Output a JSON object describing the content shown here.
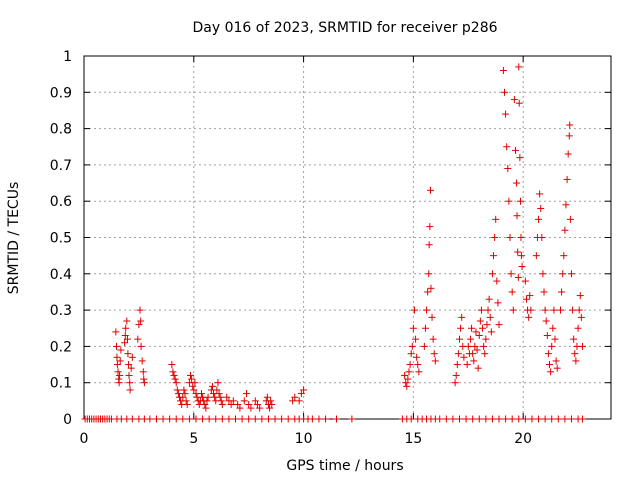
{
  "chart_data": {
    "type": "scatter",
    "title": "Day 016 of 2023, SRMTID for receiver p286",
    "xlabel": "GPS time / hours",
    "ylabel": "SRMTID / TECUs",
    "xlim": [
      0,
      24
    ],
    "ylim": [
      0,
      1
    ],
    "xticks": [
      0,
      5,
      10,
      15,
      20
    ],
    "xtick_labels": [
      "0",
      "5",
      "10",
      "15",
      "20"
    ],
    "yticks": [
      0,
      0.1,
      0.2,
      0.3,
      0.4,
      0.5,
      0.6,
      0.7,
      0.8,
      0.9,
      1
    ],
    "ytick_labels": [
      "0",
      "0.1",
      "0.2",
      "0.3",
      "0.4",
      "0.5",
      "0.6",
      "0.7",
      "0.8",
      "0.9",
      "1"
    ],
    "grid": true,
    "marker": "+",
    "color": "#e00000",
    "series": [
      {
        "name": "SRMTID",
        "points": [
          [
            0.05,
            0
          ],
          [
            0.15,
            0
          ],
          [
            0.25,
            0
          ],
          [
            0.35,
            0
          ],
          [
            0.45,
            0
          ],
          [
            0.55,
            0
          ],
          [
            0.65,
            0
          ],
          [
            0.75,
            0
          ],
          [
            0.85,
            0
          ],
          [
            0.95,
            0
          ],
          [
            1.05,
            0
          ],
          [
            1.15,
            0
          ],
          [
            1.25,
            0
          ],
          [
            1.5,
            0
          ],
          [
            1.7,
            0
          ],
          [
            1.95,
            0
          ],
          [
            2.2,
            0
          ],
          [
            2.5,
            0
          ],
          [
            2.75,
            0
          ],
          [
            3.0,
            0
          ],
          [
            3.3,
            0
          ],
          [
            3.6,
            0
          ],
          [
            3.9,
            0
          ],
          [
            4.2,
            0
          ],
          [
            4.5,
            0
          ],
          [
            4.8,
            0
          ],
          [
            5.1,
            0
          ],
          [
            5.4,
            0
          ],
          [
            5.7,
            0
          ],
          [
            6.0,
            0
          ],
          [
            6.3,
            0
          ],
          [
            6.6,
            0
          ],
          [
            6.9,
            0
          ],
          [
            7.2,
            0
          ],
          [
            7.5,
            0
          ],
          [
            7.8,
            0
          ],
          [
            8.1,
            0
          ],
          [
            8.4,
            0
          ],
          [
            8.7,
            0
          ],
          [
            9.0,
            0
          ],
          [
            9.3,
            0
          ],
          [
            9.6,
            0
          ],
          [
            9.8,
            0
          ],
          [
            10.0,
            0
          ],
          [
            10.2,
            0
          ],
          [
            10.4,
            0
          ],
          [
            10.7,
            0
          ],
          [
            11.0,
            0
          ],
          [
            11.5,
            0
          ],
          [
            12.2,
            0
          ],
          [
            14.5,
            0
          ],
          [
            14.7,
            0
          ],
          [
            14.9,
            0
          ],
          [
            15.2,
            0
          ],
          [
            15.4,
            0
          ],
          [
            15.6,
            0
          ],
          [
            15.8,
            0
          ],
          [
            16.0,
            0
          ],
          [
            16.2,
            0
          ],
          [
            16.5,
            0
          ],
          [
            16.8,
            0
          ],
          [
            17.1,
            0
          ],
          [
            17.4,
            0
          ],
          [
            17.7,
            0
          ],
          [
            18.0,
            0
          ],
          [
            18.3,
            0
          ],
          [
            18.6,
            0
          ],
          [
            18.9,
            0
          ],
          [
            19.2,
            0
          ],
          [
            19.5,
            0
          ],
          [
            19.8,
            0
          ],
          [
            20.1,
            0
          ],
          [
            20.4,
            0
          ],
          [
            20.7,
            0
          ],
          [
            21.0,
            0
          ],
          [
            21.3,
            0
          ],
          [
            21.6,
            0
          ],
          [
            21.9,
            0
          ],
          [
            22.2,
            0
          ],
          [
            22.5,
            0
          ],
          [
            22.7,
            0
          ],
          [
            1.45,
            0.24
          ],
          [
            1.48,
            0.2
          ],
          [
            1.5,
            0.17
          ],
          [
            1.52,
            0.15
          ],
          [
            1.55,
            0.13
          ],
          [
            1.58,
            0.11
          ],
          [
            1.6,
            0.1
          ],
          [
            1.62,
            0.12
          ],
          [
            1.65,
            0.16
          ],
          [
            1.68,
            0.19
          ],
          [
            1.85,
            0.21
          ],
          [
            1.88,
            0.23
          ],
          [
            1.9,
            0.25
          ],
          [
            1.95,
            0.27
          ],
          [
            1.98,
            0.22
          ],
          [
            2.0,
            0.18
          ],
          [
            2.03,
            0.15
          ],
          [
            2.05,
            0.12
          ],
          [
            2.08,
            0.1
          ],
          [
            2.1,
            0.08
          ],
          [
            2.15,
            0.14
          ],
          [
            2.2,
            0.17
          ],
          [
            2.45,
            0.22
          ],
          [
            2.5,
            0.26
          ],
          [
            2.55,
            0.3
          ],
          [
            2.58,
            0.27
          ],
          [
            2.6,
            0.2
          ],
          [
            2.65,
            0.16
          ],
          [
            2.7,
            0.13
          ],
          [
            2.72,
            0.11
          ],
          [
            2.75,
            0.1
          ],
          [
            4.0,
            0.15
          ],
          [
            4.05,
            0.13
          ],
          [
            4.1,
            0.12
          ],
          [
            4.15,
            0.11
          ],
          [
            4.2,
            0.1
          ],
          [
            4.25,
            0.08
          ],
          [
            4.3,
            0.07
          ],
          [
            4.35,
            0.06
          ],
          [
            4.4,
            0.05
          ],
          [
            4.45,
            0.04
          ],
          [
            4.5,
            0.06
          ],
          [
            4.55,
            0.08
          ],
          [
            4.6,
            0.07
          ],
          [
            4.65,
            0.05
          ],
          [
            4.7,
            0.04
          ],
          [
            4.8,
            0.1
          ],
          [
            4.85,
            0.12
          ],
          [
            4.9,
            0.11
          ],
          [
            4.95,
            0.09
          ],
          [
            5.0,
            0.08
          ],
          [
            5.05,
            0.1
          ],
          [
            5.1,
            0.07
          ],
          [
            5.15,
            0.06
          ],
          [
            5.2,
            0.05
          ],
          [
            5.25,
            0.04
          ],
          [
            5.3,
            0.05
          ],
          [
            5.35,
            0.07
          ],
          [
            5.4,
            0.06
          ],
          [
            5.45,
            0.05
          ],
          [
            5.5,
            0.04
          ],
          [
            5.55,
            0.03
          ],
          [
            5.6,
            0.05
          ],
          [
            5.65,
            0.06
          ],
          [
            5.8,
            0.08
          ],
          [
            5.85,
            0.09
          ],
          [
            5.9,
            0.07
          ],
          [
            5.95,
            0.06
          ],
          [
            6.0,
            0.05
          ],
          [
            6.05,
            0.08
          ],
          [
            6.1,
            0.1
          ],
          [
            6.15,
            0.07
          ],
          [
            6.2,
            0.06
          ],
          [
            6.25,
            0.05
          ],
          [
            6.3,
            0.04
          ],
          [
            6.5,
            0.06
          ],
          [
            6.6,
            0.05
          ],
          [
            6.7,
            0.04
          ],
          [
            6.8,
            0.05
          ],
          [
            7.0,
            0.04
          ],
          [
            7.1,
            0.03
          ],
          [
            7.3,
            0.05
          ],
          [
            7.4,
            0.07
          ],
          [
            7.5,
            0.04
          ],
          [
            7.6,
            0.03
          ],
          [
            7.8,
            0.05
          ],
          [
            7.9,
            0.04
          ],
          [
            8.0,
            0.03
          ],
          [
            8.3,
            0.05
          ],
          [
            8.35,
            0.06
          ],
          [
            8.4,
            0.04
          ],
          [
            8.45,
            0.03
          ],
          [
            8.5,
            0.05
          ],
          [
            8.55,
            0.04
          ],
          [
            9.5,
            0.05
          ],
          [
            9.6,
            0.06
          ],
          [
            9.8,
            0.05
          ],
          [
            9.9,
            0.07
          ],
          [
            10.0,
            0.08
          ],
          [
            14.6,
            0.12
          ],
          [
            14.65,
            0.1
          ],
          [
            14.7,
            0.09
          ],
          [
            14.75,
            0.11
          ],
          [
            14.8,
            0.13
          ],
          [
            14.85,
            0.15
          ],
          [
            14.9,
            0.18
          ],
          [
            14.95,
            0.2
          ],
          [
            15.0,
            0.25
          ],
          [
            15.05,
            0.3
          ],
          [
            15.1,
            0.22
          ],
          [
            15.15,
            0.17
          ],
          [
            15.2,
            0.15
          ],
          [
            15.25,
            0.13
          ],
          [
            15.5,
            0.2
          ],
          [
            15.55,
            0.25
          ],
          [
            15.6,
            0.3
          ],
          [
            15.65,
            0.35
          ],
          [
            15.7,
            0.4
          ],
          [
            15.72,
            0.48
          ],
          [
            15.75,
            0.53
          ],
          [
            15.78,
            0.63
          ],
          [
            15.8,
            0.36
          ],
          [
            15.85,
            0.28
          ],
          [
            15.9,
            0.22
          ],
          [
            15.95,
            0.18
          ],
          [
            16.0,
            0.16
          ],
          [
            16.9,
            0.1
          ],
          [
            16.95,
            0.12
          ],
          [
            17.0,
            0.15
          ],
          [
            17.05,
            0.18
          ],
          [
            17.1,
            0.22
          ],
          [
            17.15,
            0.25
          ],
          [
            17.2,
            0.28
          ],
          [
            17.25,
            0.2
          ],
          [
            17.3,
            0.17
          ],
          [
            17.45,
            0.15
          ],
          [
            17.5,
            0.2
          ],
          [
            17.55,
            0.18
          ],
          [
            17.6,
            0.22
          ],
          [
            17.65,
            0.25
          ],
          [
            17.7,
            0.18
          ],
          [
            17.75,
            0.16
          ],
          [
            17.8,
            0.2
          ],
          [
            17.85,
            0.24
          ],
          [
            17.9,
            0.19
          ],
          [
            17.95,
            0.14
          ],
          [
            18.0,
            0.23
          ],
          [
            18.05,
            0.27
          ],
          [
            18.1,
            0.3
          ],
          [
            18.15,
            0.25
          ],
          [
            18.2,
            0.2
          ],
          [
            18.25,
            0.18
          ],
          [
            18.3,
            0.22
          ],
          [
            18.35,
            0.26
          ],
          [
            18.4,
            0.3
          ],
          [
            18.45,
            0.33
          ],
          [
            18.5,
            0.28
          ],
          [
            18.55,
            0.24
          ],
          [
            18.6,
            0.4
          ],
          [
            18.65,
            0.45
          ],
          [
            18.7,
            0.5
          ],
          [
            18.75,
            0.55
          ],
          [
            18.8,
            0.38
          ],
          [
            18.85,
            0.32
          ],
          [
            18.9,
            0.26
          ],
          [
            19.1,
            0.96
          ],
          [
            19.15,
            0.9
          ],
          [
            19.2,
            0.84
          ],
          [
            19.25,
            0.75
          ],
          [
            19.3,
            0.69
          ],
          [
            19.35,
            0.6
          ],
          [
            19.4,
            0.5
          ],
          [
            19.45,
            0.4
          ],
          [
            19.5,
            0.35
          ],
          [
            19.55,
            0.3
          ],
          [
            19.6,
            0.88
          ],
          [
            19.65,
            0.74
          ],
          [
            19.7,
            0.65
          ],
          [
            19.72,
            0.56
          ],
          [
            19.75,
            0.46
          ],
          [
            19.78,
            0.39
          ],
          [
            19.8,
            0.97
          ],
          [
            19.82,
            0.87
          ],
          [
            19.85,
            0.72
          ],
          [
            19.88,
            0.6
          ],
          [
            19.9,
            0.5
          ],
          [
            19.92,
            0.45
          ],
          [
            19.95,
            0.42
          ],
          [
            20.1,
            0.38
          ],
          [
            20.15,
            0.33
          ],
          [
            20.2,
            0.3
          ],
          [
            20.25,
            0.28
          ],
          [
            20.3,
            0.34
          ],
          [
            20.35,
            0.3
          ],
          [
            20.6,
            0.45
          ],
          [
            20.65,
            0.5
          ],
          [
            20.7,
            0.55
          ],
          [
            20.75,
            0.62
          ],
          [
            20.8,
            0.58
          ],
          [
            20.85,
            0.5
          ],
          [
            20.9,
            0.4
          ],
          [
            20.95,
            0.35
          ],
          [
            21.0,
            0.3
          ],
          [
            21.05,
            0.27
          ],
          [
            21.1,
            0.23
          ],
          [
            21.15,
            0.18
          ],
          [
            21.2,
            0.15
          ],
          [
            21.25,
            0.13
          ],
          [
            21.3,
            0.2
          ],
          [
            21.35,
            0.25
          ],
          [
            21.4,
            0.3
          ],
          [
            21.45,
            0.22
          ],
          [
            21.5,
            0.16
          ],
          [
            21.55,
            0.14
          ],
          [
            21.7,
            0.3
          ],
          [
            21.75,
            0.35
          ],
          [
            21.8,
            0.4
          ],
          [
            21.85,
            0.45
          ],
          [
            21.9,
            0.52
          ],
          [
            21.95,
            0.59
          ],
          [
            22.0,
            0.66
          ],
          [
            22.05,
            0.73
          ],
          [
            22.1,
            0.78
          ],
          [
            22.12,
            0.81
          ],
          [
            22.15,
            0.55
          ],
          [
            22.2,
            0.4
          ],
          [
            22.25,
            0.3
          ],
          [
            22.3,
            0.22
          ],
          [
            22.35,
            0.18
          ],
          [
            22.4,
            0.16
          ],
          [
            22.45,
            0.2
          ],
          [
            22.5,
            0.25
          ],
          [
            22.55,
            0.3
          ],
          [
            22.6,
            0.34
          ],
          [
            22.65,
            0.28
          ],
          [
            22.7,
            0.2
          ]
        ]
      }
    ]
  }
}
